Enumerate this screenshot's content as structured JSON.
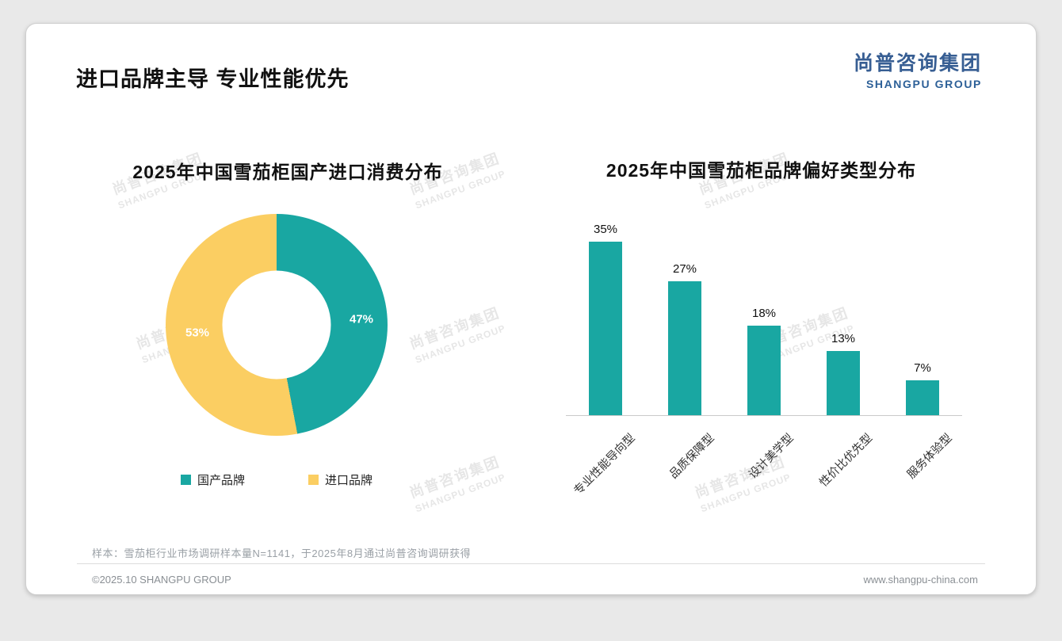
{
  "page": {
    "title": "进口品牌主导 专业性能优先",
    "footnote": "样本：雪茄柜行业市场调研样本量N=1141，于2025年8月通过尚普咨询调研获得",
    "copyright": "©2025.10 SHANGPU GROUP",
    "website": "www.shangpu-china.com"
  },
  "logo": {
    "cn": "尚普咨询集团",
    "en": "SHANGPU GROUP"
  },
  "watermark": {
    "cn": "尚普咨询集团",
    "en": "SHANGPU GROUP"
  },
  "colors": {
    "teal": "#19A7A2",
    "yellow": "#FBCE62",
    "logo_blue": "#375E93"
  },
  "chart_data": [
    {
      "type": "pie",
      "donut": true,
      "title": "2025年中国雪茄柜国产进口消费分布",
      "labels": [
        "国产品牌",
        "进口品牌"
      ],
      "values": [
        47,
        53
      ],
      "pct_labels": [
        "47%",
        "53%"
      ],
      "colors": [
        "#19A7A2",
        "#FBCE62"
      ],
      "legend_position": "bottom",
      "start_angle_deg": 0,
      "direction": "clockwise"
    },
    {
      "type": "bar",
      "title": "2025年中国雪茄柜品牌偏好类型分布",
      "categories": [
        "专业性能导向型",
        "品质保障型",
        "设计美学型",
        "性价比优先型",
        "服务体验型"
      ],
      "values": [
        35,
        27,
        18,
        13,
        7
      ],
      "value_labels": [
        "35%",
        "27%",
        "18%",
        "13%",
        "7%"
      ],
      "bar_color": "#19A7A2",
      "ylim": [
        0,
        40
      ],
      "grid": false,
      "x_label_rotation_deg": 45
    }
  ]
}
